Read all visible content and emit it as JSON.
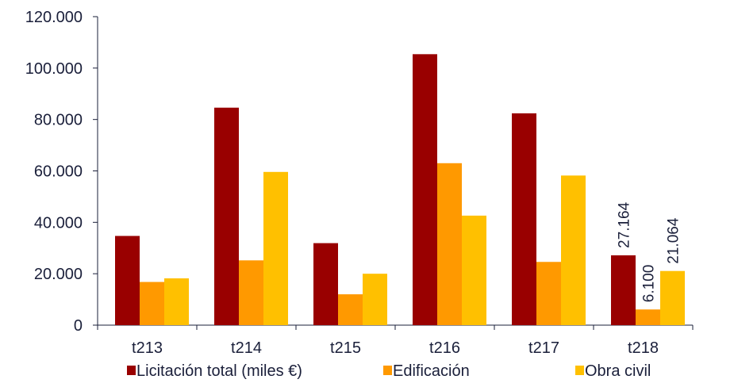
{
  "chart_data": {
    "type": "bar",
    "categories": [
      "t213",
      "t214",
      "t215",
      "t216",
      "t217",
      "t218"
    ],
    "series": [
      {
        "name": "Licitación total (miles €)",
        "color": "#990000",
        "values": [
          34700,
          84600,
          31900,
          105400,
          82400,
          27164
        ]
      },
      {
        "name": "Edificación",
        "color": "#FF9900",
        "values": [
          16800,
          25200,
          12000,
          63000,
          24600,
          6100
        ]
      },
      {
        "name": "Obra civil",
        "color": "#FFC000",
        "values": [
          18200,
          59600,
          20000,
          42600,
          58200,
          21064
        ]
      }
    ],
    "ylim": [
      0,
      120000
    ],
    "yticks": [
      0,
      20000,
      40000,
      60000,
      80000,
      100000,
      120000
    ],
    "ytick_labels": [
      "0",
      "20.000",
      "40.000",
      "60.000",
      "80.000",
      "100.000",
      "120.000"
    ],
    "data_labels": [
      {
        "category": "t218",
        "series": 0,
        "text": "27.164"
      },
      {
        "category": "t218",
        "series": 1,
        "text": "6.100"
      },
      {
        "category": "t218",
        "series": 2,
        "text": "21.064"
      }
    ],
    "legend_position": "bottom",
    "grid": false,
    "title": "",
    "xlabel": "",
    "ylabel": ""
  }
}
